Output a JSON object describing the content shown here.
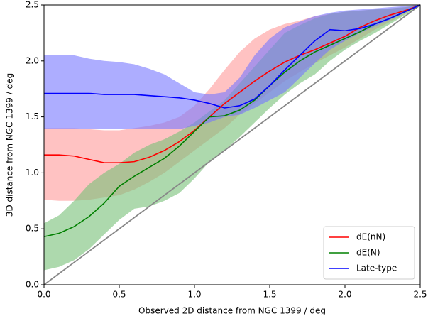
{
  "chart_data": {
    "type": "line",
    "xlabel": "Observed 2D distance from NGC 1399 / deg",
    "ylabel": "3D distance from NGC 1399 / deg",
    "x": [
      0,
      0.1,
      0.2,
      0.3,
      0.4,
      0.5,
      0.6,
      0.7,
      0.8,
      0.9,
      1.0,
      1.1,
      1.2,
      1.3,
      1.4,
      1.5,
      1.6,
      1.7,
      1.8,
      1.9,
      2.0,
      2.1,
      2.2,
      2.3,
      2.4,
      2.5
    ],
    "series": [
      {
        "name": "dE(nN)",
        "color": "#ff0000",
        "band_color": "#ff9999",
        "values": [
          1.16,
          1.16,
          1.15,
          1.12,
          1.09,
          1.09,
          1.1,
          1.14,
          1.2,
          1.28,
          1.38,
          1.5,
          1.62,
          1.72,
          1.82,
          1.91,
          1.99,
          2.05,
          2.1,
          2.16,
          2.22,
          2.3,
          2.36,
          2.41,
          2.45,
          2.5
        ],
        "lower": [
          0.76,
          0.75,
          0.75,
          0.76,
          0.78,
          0.8,
          0.85,
          0.92,
          1.0,
          1.1,
          1.2,
          1.3,
          1.4,
          1.52,
          1.62,
          1.72,
          1.82,
          1.9,
          1.98,
          2.05,
          2.12,
          2.2,
          2.28,
          2.35,
          2.42,
          2.5
        ],
        "upper": [
          1.4,
          1.4,
          1.4,
          1.39,
          1.38,
          1.38,
          1.4,
          1.42,
          1.45,
          1.5,
          1.6,
          1.75,
          1.92,
          2.08,
          2.2,
          2.28,
          2.33,
          2.36,
          2.4,
          2.42,
          2.44,
          2.45,
          2.46,
          2.47,
          2.48,
          2.5
        ]
      },
      {
        "name": "dE(N)",
        "color": "#008000",
        "band_color": "#77c077",
        "values": [
          0.43,
          0.46,
          0.52,
          0.61,
          0.73,
          0.88,
          0.97,
          1.05,
          1.13,
          1.24,
          1.37,
          1.5,
          1.51,
          1.56,
          1.65,
          1.78,
          1.9,
          2.0,
          2.08,
          2.14,
          2.2,
          2.26,
          2.33,
          2.38,
          2.44,
          2.5
        ],
        "lower": [
          0.13,
          0.16,
          0.22,
          0.32,
          0.45,
          0.58,
          0.68,
          0.7,
          0.75,
          0.82,
          0.95,
          1.1,
          1.2,
          1.32,
          1.45,
          1.58,
          1.7,
          1.8,
          1.88,
          2.0,
          2.1,
          2.18,
          2.25,
          2.33,
          2.41,
          2.5
        ],
        "upper": [
          0.55,
          0.62,
          0.75,
          0.9,
          1.0,
          1.08,
          1.18,
          1.25,
          1.3,
          1.37,
          1.45,
          1.55,
          1.65,
          1.8,
          1.95,
          2.1,
          2.25,
          2.32,
          2.38,
          2.42,
          2.44,
          2.45,
          2.46,
          2.47,
          2.48,
          2.5
        ]
      },
      {
        "name": "Late-type",
        "color": "#0000ff",
        "band_color": "#7777ff",
        "values": [
          1.71,
          1.71,
          1.71,
          1.71,
          1.7,
          1.7,
          1.7,
          1.69,
          1.68,
          1.67,
          1.65,
          1.62,
          1.58,
          1.6,
          1.66,
          1.78,
          1.92,
          2.05,
          2.18,
          2.28,
          2.27,
          2.29,
          2.33,
          2.38,
          2.44,
          2.5
        ],
        "lower": [
          1.39,
          1.39,
          1.39,
          1.39,
          1.39,
          1.39,
          1.39,
          1.39,
          1.39,
          1.39,
          1.42,
          1.45,
          1.5,
          1.52,
          1.58,
          1.65,
          1.72,
          1.85,
          1.98,
          2.1,
          2.18,
          2.25,
          2.31,
          2.37,
          2.43,
          2.5
        ],
        "upper": [
          2.05,
          2.05,
          2.05,
          2.02,
          2.0,
          1.99,
          1.97,
          1.93,
          1.88,
          1.8,
          1.72,
          1.7,
          1.72,
          1.85,
          2.05,
          2.2,
          2.3,
          2.35,
          2.4,
          2.43,
          2.45,
          2.46,
          2.47,
          2.48,
          2.49,
          2.5
        ]
      }
    ],
    "xlim": [
      0,
      2.5
    ],
    "ylim": [
      0,
      2.5
    ],
    "xticks": [
      {
        "value": 0,
        "label": "0.0"
      },
      {
        "value": 0.5,
        "label": "0.5"
      },
      {
        "value": 1,
        "label": "1.0"
      },
      {
        "value": 1.5,
        "label": "1.5"
      },
      {
        "value": 2,
        "label": "2.0"
      },
      {
        "value": 2.5,
        "label": "2.5"
      }
    ],
    "yticks": [
      {
        "value": 0,
        "label": "0.0"
      },
      {
        "value": 0.5,
        "label": "0.5"
      },
      {
        "value": 1,
        "label": "1.0"
      },
      {
        "value": 1.5,
        "label": "1.5"
      },
      {
        "value": 2,
        "label": "2.0"
      },
      {
        "value": 2.5,
        "label": "2.5"
      }
    ],
    "reference_color": "#888888",
    "grid": false,
    "legend": "lower right"
  }
}
